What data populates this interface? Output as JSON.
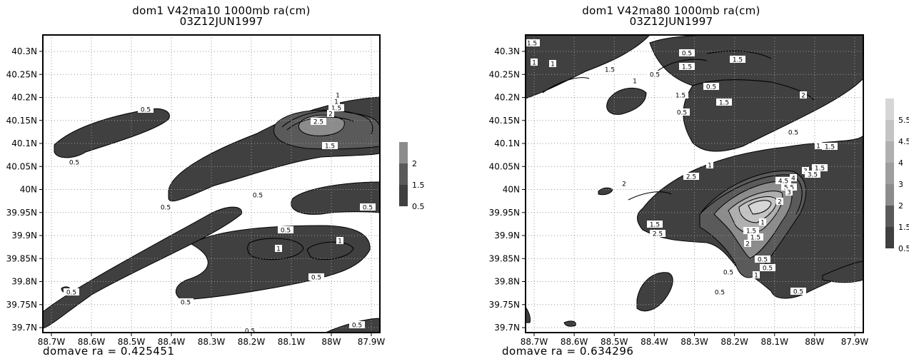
{
  "colors": {
    "contour_fill_0_5": "#404040",
    "contour_fill_1_5": "#5a5a5a",
    "contour_fill_2": "#8c8c8c",
    "contour_fill_2_5": "#9e9e9e",
    "contour_fill_3": "#b0b0b0",
    "contour_fill_4": "#c4c4c4",
    "contour_fill_5": "#d6d6d6",
    "grid": "#9a9a9a"
  },
  "chart_data": [
    {
      "type": "contour",
      "title": "dom1 V42ma10 1000mb ra(cm)",
      "subtitle": "03Z12JUN1997",
      "footer": "domave ra = 0.425451",
      "x_tick_labels": [
        "88.7W",
        "88.6W",
        "88.5W",
        "88.4W",
        "88.3W",
        "88.2W",
        "88.1W",
        "88W",
        "87.9W"
      ],
      "y_tick_labels": [
        "40.3N",
        "40.25N",
        "40.2N",
        "40.15N",
        "40.1N",
        "40.05N",
        "40N",
        "39.95N",
        "39.9N",
        "39.85N",
        "39.8N",
        "39.75N",
        "39.7N"
      ],
      "xlim": [
        -88.75,
        -87.88
      ],
      "ylim": [
        39.69,
        40.33
      ],
      "grid": true,
      "colorbar_levels": [
        "0.5",
        "1.5",
        "2"
      ],
      "contour_labels": [
        "0.5",
        "0.5",
        "0.5",
        "0.5",
        "0.5",
        "0.5",
        "0.5",
        "0.5",
        "0.5",
        "0.5",
        "0.5",
        "1",
        "1",
        "1",
        "1",
        "1.5",
        "1.5",
        "2",
        "2.5"
      ],
      "domain_average": 0.425451
    },
    {
      "type": "contour",
      "title": "dom1 V42ma80 1000mb ra(cm)",
      "subtitle": "03Z12JUN1997",
      "footer": "domave ra = 0.634296",
      "x_tick_labels": [
        "88.7W",
        "88.6W",
        "88.5W",
        "88.4W",
        "88.3W",
        "88.2W",
        "88.1W",
        "88W",
        "87.9W"
      ],
      "y_tick_labels": [
        "40.3N",
        "40.25N",
        "40.2N",
        "40.15N",
        "40.1N",
        "40.05N",
        "40N",
        "39.95N",
        "39.9N",
        "39.85N",
        "39.8N",
        "39.75N",
        "39.7N"
      ],
      "xlim": [
        -88.75,
        -87.88
      ],
      "ylim": [
        39.69,
        40.33
      ],
      "grid": true,
      "colorbar_levels": [
        "0.5",
        "1.5",
        "2",
        "3",
        "4",
        "4.5",
        "5.5"
      ],
      "contour_labels": [
        "1.5",
        "1",
        "1",
        "1.5",
        "0.5",
        "1.5",
        "0.5",
        "1.5",
        "1",
        "0.5",
        "1.5",
        "2",
        "1.5",
        "0.5",
        "0.5",
        "1",
        "1.5",
        "1",
        "1.5",
        "2",
        "2.5",
        "3",
        "3.5",
        "4",
        "4.5",
        "5.5",
        "3",
        "2",
        "1",
        "1.5",
        "2.5",
        "2",
        "1.5",
        "1.5",
        "0.5",
        "1",
        "0.5",
        "0.5",
        "0.5",
        "0.5"
      ],
      "domain_average": 0.634296
    }
  ]
}
